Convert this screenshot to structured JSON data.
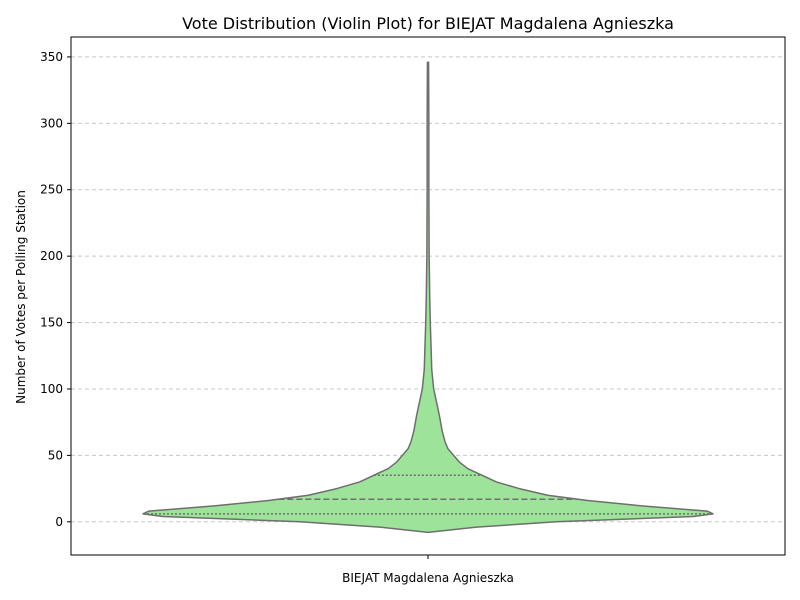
{
  "chart_data": {
    "type": "violin",
    "title": "Vote Distribution (Violin Plot) for BIEJAT Magdalena Agnieszka",
    "xlabel": "",
    "ylabel": "Number of Votes per Polling Station",
    "categories": [
      "BIEJAT Magdalena Agnieszka"
    ],
    "ylim": [
      -25,
      365
    ],
    "yticks": [
      0,
      50,
      100,
      150,
      200,
      250,
      300,
      350
    ],
    "grid": true,
    "grid_axis": "y",
    "grid_style": "dashed",
    "fill_color": "#9de39a",
    "edge_color": "#6e6e6e",
    "inner": "quartile",
    "quartiles": [
      6,
      17,
      35
    ],
    "y_range": [
      -8,
      346
    ],
    "density_profile": [
      {
        "y": -8,
        "w": 0.0
      },
      {
        "y": -4,
        "w": 0.17
      },
      {
        "y": 0,
        "w": 0.45
      },
      {
        "y": 4,
        "w": 0.93
      },
      {
        "y": 6,
        "w": 1.0
      },
      {
        "y": 8,
        "w": 0.98
      },
      {
        "y": 12,
        "w": 0.75
      },
      {
        "y": 16,
        "w": 0.56
      },
      {
        "y": 20,
        "w": 0.42
      },
      {
        "y": 25,
        "w": 0.32
      },
      {
        "y": 30,
        "w": 0.24
      },
      {
        "y": 35,
        "w": 0.19
      },
      {
        "y": 40,
        "w": 0.14
      },
      {
        "y": 45,
        "w": 0.11
      },
      {
        "y": 50,
        "w": 0.09
      },
      {
        "y": 55,
        "w": 0.07
      },
      {
        "y": 60,
        "w": 0.06
      },
      {
        "y": 68,
        "w": 0.05
      },
      {
        "y": 80,
        "w": 0.04
      },
      {
        "y": 90,
        "w": 0.03
      },
      {
        "y": 100,
        "w": 0.02
      },
      {
        "y": 115,
        "w": 0.013
      },
      {
        "y": 130,
        "w": 0.011
      },
      {
        "y": 150,
        "w": 0.008
      },
      {
        "y": 170,
        "w": 0.006
      },
      {
        "y": 200,
        "w": 0.004
      },
      {
        "y": 250,
        "w": 0.003
      },
      {
        "y": 300,
        "w": 0.003
      },
      {
        "y": 346,
        "w": 0.002
      }
    ]
  }
}
